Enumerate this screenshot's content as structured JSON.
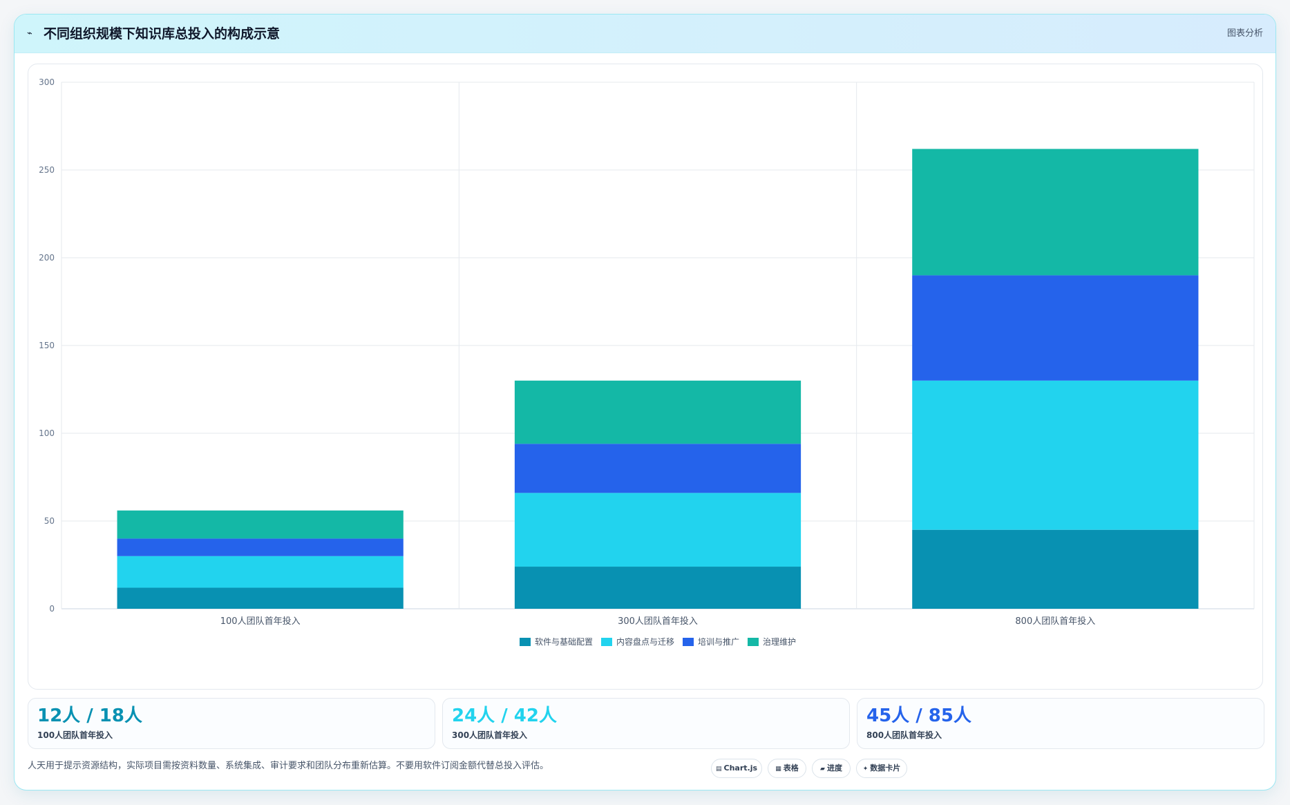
{
  "header": {
    "icon": "trend-line-icon",
    "title": "不同组织规模下知识库总投入的构成示意",
    "tag": "图表分析"
  },
  "chart_data": {
    "type": "bar",
    "stacked": true,
    "categories": [
      "100人团队首年投入",
      "300人团队首年投入",
      "800人团队首年投入"
    ],
    "series": [
      {
        "name": "软件与基础配置",
        "color": "#0891b2",
        "values": [
          12,
          24,
          45
        ]
      },
      {
        "name": "内容盘点与迁移",
        "color": "#22d3ee",
        "values": [
          18,
          42,
          85
        ]
      },
      {
        "name": "培训与推广",
        "color": "#2563eb",
        "values": [
          10,
          28,
          60
        ]
      },
      {
        "name": "治理维护",
        "color": "#14b8a6",
        "values": [
          16,
          36,
          72
        ]
      }
    ],
    "ylim": [
      0,
      300
    ],
    "yticks": [
      0,
      50,
      100,
      150,
      200,
      250,
      300
    ],
    "grid": true,
    "legend": "bottom",
    "title": "",
    "xlabel": "",
    "ylabel": ""
  },
  "stats": [
    {
      "value": "12人 / 18人",
      "label": "100人团队首年投入",
      "color": "#0891b2"
    },
    {
      "value": "24人 / 42人",
      "label": "300人团队首年投入",
      "color": "#22d3ee"
    },
    {
      "value": "45人 / 85人",
      "label": "800人团队首年投入",
      "color": "#2563eb"
    }
  ],
  "footnote": "人天用于提示资源结构，实际项目需按资料数量、系统集成、审计要求和团队分布重新估算。不要用软件订阅金额代替总投入评估。",
  "chips": [
    {
      "icon": "chart-icon",
      "glyph": "▤",
      "label": "Chart.js"
    },
    {
      "icon": "table-icon",
      "glyph": "▦",
      "label": "表格"
    },
    {
      "icon": "progress-icon",
      "glyph": "▰",
      "label": "进度"
    },
    {
      "icon": "card-icon",
      "glyph": "✦",
      "label": "数据卡片"
    }
  ]
}
